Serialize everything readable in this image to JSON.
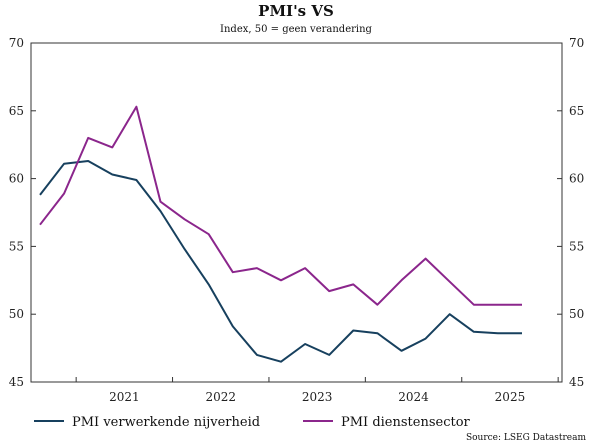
{
  "chart_data": {
    "type": "line",
    "title": "PMI's VS",
    "subtitle": "Index, 50 = geen verandering",
    "ylim": [
      45,
      70
    ],
    "yticks": [
      45,
      50,
      55,
      60,
      65,
      70
    ],
    "xticks": [
      "2021",
      "2022",
      "2023",
      "2024",
      "2025"
    ],
    "x": [
      "2020-Q3",
      "2020-Q4",
      "2021-Q1",
      "2021-Q2",
      "2021-Q3",
      "2021-Q4",
      "2022-Q1",
      "2022-Q2",
      "2022-Q3",
      "2022-Q4",
      "2023-Q1",
      "2023-Q2",
      "2023-Q3",
      "2023-Q4",
      "2024-Q1",
      "2024-Q2",
      "2024-Q3",
      "2024-Q4",
      "2025-Q1",
      "2025-Q2",
      "2025-Q3"
    ],
    "series": [
      {
        "name": "PMI verwerkende nijverheid",
        "color": "#17405e",
        "values": [
          58.8,
          61.1,
          61.3,
          60.3,
          59.9,
          57.6,
          54.8,
          52.2,
          49.1,
          47.0,
          46.5,
          47.8,
          47.0,
          48.8,
          48.6,
          47.3,
          48.2,
          50.0,
          48.7,
          48.6,
          48.6
        ]
      },
      {
        "name": "PMI dienstensector",
        "color": "#8b268c",
        "values": [
          56.6,
          58.9,
          63.0,
          62.3,
          65.3,
          58.3,
          57.0,
          55.9,
          53.1,
          53.4,
          52.5,
          53.4,
          51.7,
          52.2,
          50.7,
          52.5,
          54.1,
          52.4,
          50.7,
          50.7,
          50.7
        ]
      }
    ],
    "grid": false,
    "legend_position": "bottom"
  },
  "source_text": "Source: LSEG Datastream"
}
